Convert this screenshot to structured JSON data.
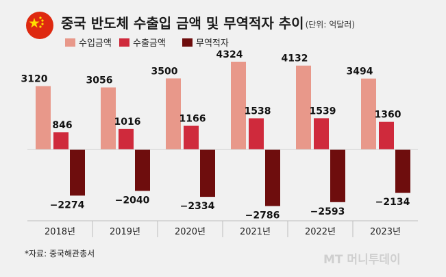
{
  "chart_data": {
    "type": "bar",
    "title": "중국 반도체 수출입 금액 및 무역적자 추이",
    "unit": "(단위: 억달러)",
    "categories": [
      "2018년",
      "2019년",
      "2020년",
      "2021년",
      "2022년",
      "2023년"
    ],
    "series": [
      {
        "name": "수입금액",
        "color": "#e8988a",
        "values": [
          3120,
          3056,
          3500,
          4324,
          4132,
          3494
        ],
        "labels": [
          "3120",
          "3056",
          "3500",
          "4324",
          "4132",
          "3494"
        ]
      },
      {
        "name": "수출금액",
        "color": "#cf2a3c",
        "values": [
          846,
          1016,
          1166,
          1538,
          1539,
          1360
        ],
        "labels": [
          "846",
          "1016",
          "1166",
          "1538",
          "1539",
          "1360"
        ]
      },
      {
        "name": "무역적자",
        "color": "#6e0d0d",
        "values": [
          -2274,
          -2040,
          -2334,
          -2786,
          -2593,
          -2134
        ],
        "labels": [
          "−2274",
          "−2040",
          "−2334",
          "−2786",
          "−2593",
          "−2134"
        ]
      }
    ],
    "ylim": [
      -2786,
      4324
    ],
    "grid": false,
    "legend_position": "top-left",
    "source": "*자료: 중국해관총서",
    "watermark": "MT 머니투데이"
  }
}
